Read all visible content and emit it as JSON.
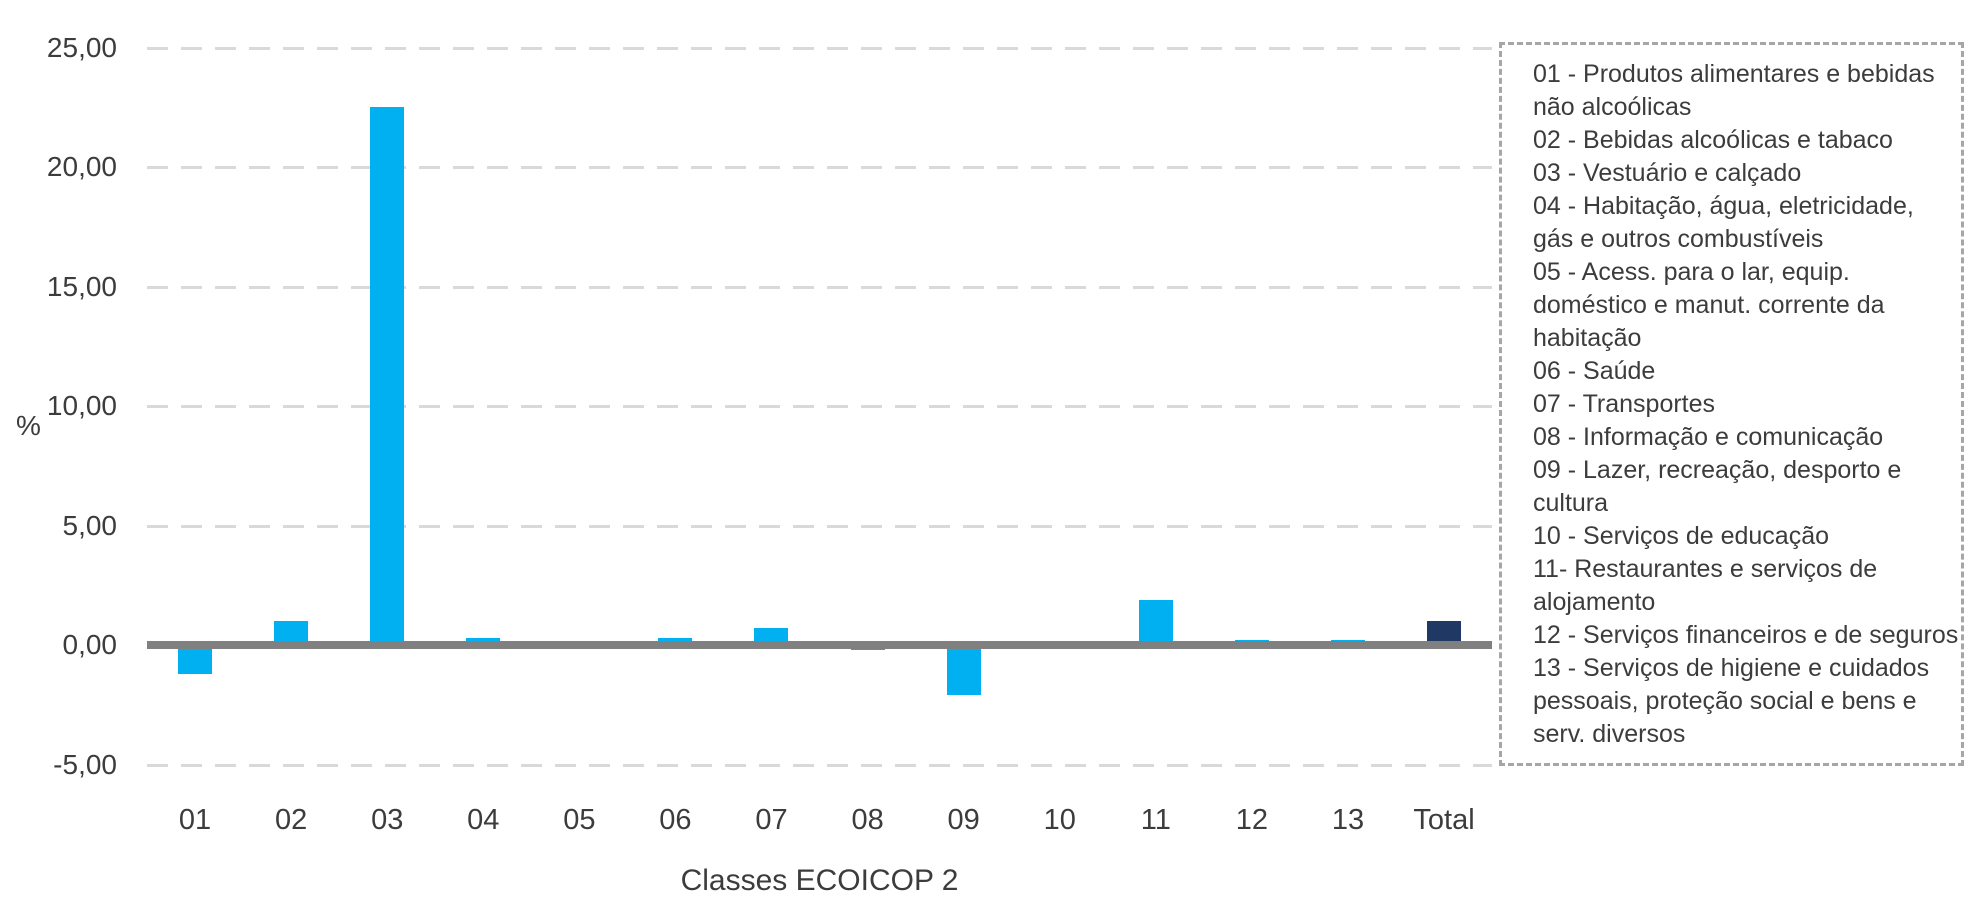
{
  "chart_data": {
    "type": "bar",
    "title": "",
    "xlabel": "Classes ECOICOP 2",
    "ylabel": "%",
    "categories": [
      "01",
      "02",
      "03",
      "04",
      "05",
      "06",
      "07",
      "08",
      "09",
      "10",
      "11",
      "12",
      "13",
      "Total"
    ],
    "values": [
      -1.2,
      1.0,
      22.5,
      0.3,
      0.0,
      0.3,
      0.7,
      -0.2,
      -2.1,
      0.0,
      1.9,
      0.2,
      0.2,
      1.0
    ],
    "ylim": [
      -5,
      25
    ],
    "grid": "horizontal-dashed",
    "legend_position": "right",
    "bar_color": "#00B0F0",
    "total_color": "#1F3864",
    "axis_line_color": "#808080",
    "gridline_color": "#D9D9D9",
    "yticks": [
      {
        "value": 25,
        "label": "25,00"
      },
      {
        "value": 20,
        "label": "20,00"
      },
      {
        "value": 15,
        "label": "15,00"
      },
      {
        "value": 10,
        "label": "10,00"
      },
      {
        "value": 5,
        "label": "5,00"
      },
      {
        "value": 0,
        "label": "0,00"
      },
      {
        "value": -5,
        "label": "-5,00"
      }
    ],
    "legend_lines": [
      "01 - Produtos alimentares e bebidas",
      "não alcoólicas",
      "02 - Bebidas alcoólicas e tabaco",
      "03 - Vestuário e calçado",
      "04 - Habitação, água, eletricidade,",
      "gás e outros combustíveis",
      "05 - Acess. para o lar, equip.",
      "doméstico e manut. corrente da",
      "habitação",
      "06 - Saúde",
      "07 - Transportes",
      "08 - Informação e comunicação",
      "09 - Lazer, recreação, desporto e",
      "cultura",
      "10 - Serviços de educação",
      "11- Restaurantes e serviços de",
      "alojamento",
      "12 - Serviços financeiros e de seguros",
      "13 - Serviços de higiene e cuidados",
      "pessoais, proteção social e bens e",
      "serv. diversos"
    ]
  }
}
